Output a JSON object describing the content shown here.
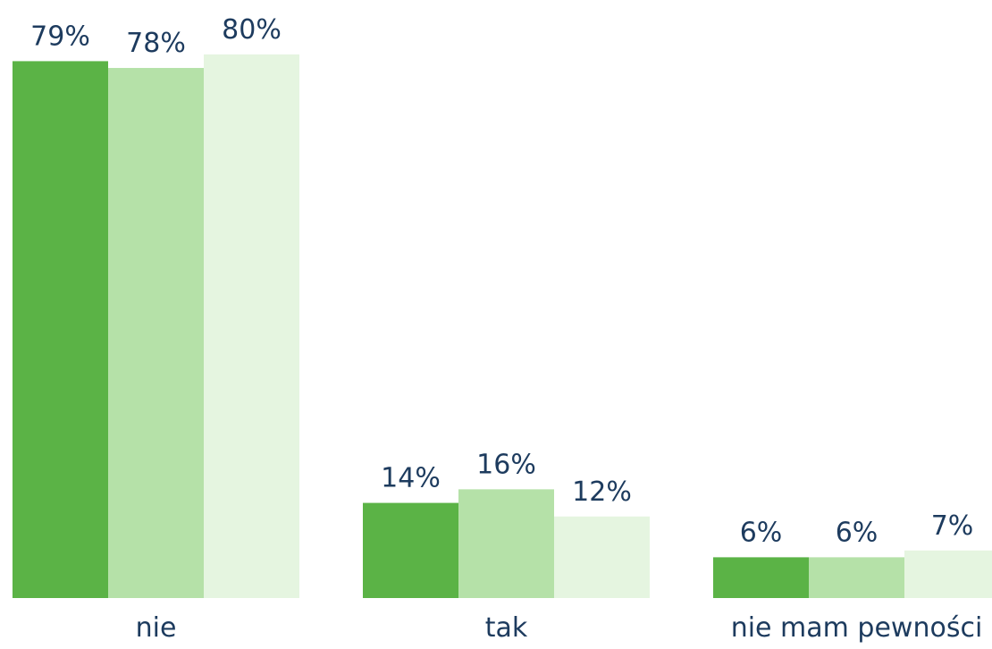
{
  "chart_data": {
    "type": "bar",
    "categories": [
      "nie",
      "tak",
      "nie mam pewności"
    ],
    "series": [
      {
        "color": "#5bb346",
        "values": [
          79,
          14,
          6
        ],
        "value_labels": [
          "79%",
          "14%",
          "6%"
        ]
      },
      {
        "color": "#b5e1a8",
        "values": [
          78,
          16,
          6
        ],
        "value_labels": [
          "78%",
          "16%",
          "6%"
        ]
      },
      {
        "color": "#e5f5e0",
        "values": [
          80,
          12,
          7
        ],
        "value_labels": [
          "80%",
          "12%",
          "7%"
        ]
      }
    ],
    "ylim": [
      0,
      88
    ]
  }
}
